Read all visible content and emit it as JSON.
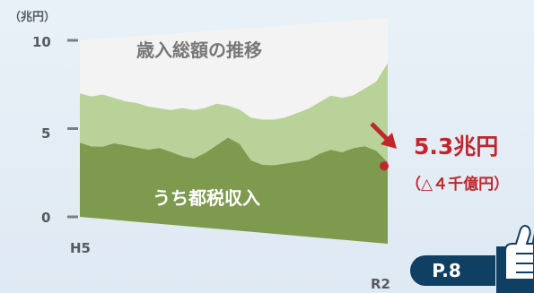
{
  "chart_data": {
    "type": "area",
    "unit_label": "（兆円）",
    "y_ticks": [
      "10",
      "5",
      "0"
    ],
    "ylim": [
      0,
      10
    ],
    "x_labels": {
      "start": "H5",
      "end": "R2"
    },
    "series": [
      {
        "name": "歳入総額の推移",
        "values": [
          10,
          10,
          10,
          10,
          10,
          10,
          10,
          10,
          10,
          10,
          10,
          10,
          10,
          10,
          10,
          10,
          10,
          10,
          10,
          10,
          10,
          10,
          10,
          10,
          10,
          10,
          10,
          10
        ],
        "color": "#f3f3f3"
      },
      {
        "name": "",
        "values": [
          7.0,
          6.8,
          6.9,
          6.7,
          6.5,
          6.4,
          6.2,
          6.1,
          6.0,
          6.1,
          6.0,
          6.1,
          6.3,
          6.2,
          6.0,
          5.6,
          5.5,
          5.5,
          5.6,
          5.8,
          6.0,
          6.3,
          6.6,
          6.5,
          6.6,
          6.9,
          7.2,
          8.0
        ],
        "color": "#b9d29a"
      },
      {
        "name": "うち都税収入",
        "values": [
          4.2,
          4.0,
          4.0,
          4.2,
          4.1,
          4.0,
          3.9,
          4.0,
          3.8,
          3.6,
          3.5,
          3.8,
          4.2,
          4.6,
          4.3,
          3.5,
          3.3,
          3.3,
          3.4,
          3.5,
          3.6,
          3.9,
          4.1,
          4.0,
          4.2,
          4.3,
          4.1,
          3.6
        ],
        "color": "#7d9a4f"
      }
    ],
    "annotation": {
      "value": "5.3兆円",
      "change": "（△４千億円）",
      "color": "#c0272d"
    }
  },
  "page_button": {
    "label": "P.8"
  }
}
